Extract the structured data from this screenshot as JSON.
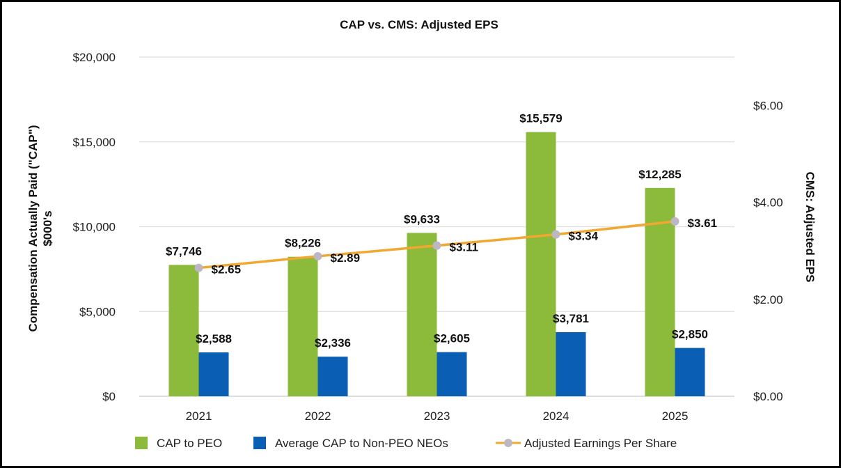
{
  "chart_data": {
    "type": "bar",
    "title": "CAP vs. CMS: Adjusted EPS",
    "categories": [
      "2021",
      "2022",
      "2023",
      "2024",
      "2025"
    ],
    "ylabel": "Compensation Actually Paid (\"CAP\")",
    "ylabel_sub": "$000's",
    "ylim": [
      0,
      20000
    ],
    "yticks": [
      "$0",
      "$5,000",
      "$10,000",
      "$15,000",
      "$20,000"
    ],
    "y2label": "CMS: Adjusted EPS",
    "y2lim": [
      0,
      7
    ],
    "y2ticks": [
      "$0.00",
      "$2.00",
      "$4.00",
      "$6.00"
    ],
    "grid": true,
    "legend_position": "bottom",
    "series": [
      {
        "name": "CAP to PEO",
        "kind": "bar",
        "axis": "left",
        "color": "#8cba3a",
        "values": [
          7746,
          8226,
          9633,
          15579,
          12285
        ],
        "labels": [
          "$7,746",
          "$8,226",
          "$9,633",
          "$15,579",
          "$12,285"
        ]
      },
      {
        "name": "Average CAP to Non-PEO NEOs",
        "kind": "bar",
        "axis": "left",
        "color": "#0a5eb4",
        "values": [
          2588,
          2336,
          2605,
          3781,
          2850
        ],
        "labels": [
          "$2,588",
          "$2,336",
          "$2,605",
          "$3,781",
          "$2,850"
        ]
      },
      {
        "name": "Adjusted Earnings Per Share",
        "kind": "line",
        "axis": "right",
        "color": "#f0a830",
        "marker_color": "#bdb7c4",
        "values": [
          2.65,
          2.89,
          3.11,
          3.34,
          3.61
        ],
        "labels": [
          "$2.65",
          "$2.89",
          "$3.11",
          "$3.34",
          "$3.61"
        ]
      }
    ]
  }
}
